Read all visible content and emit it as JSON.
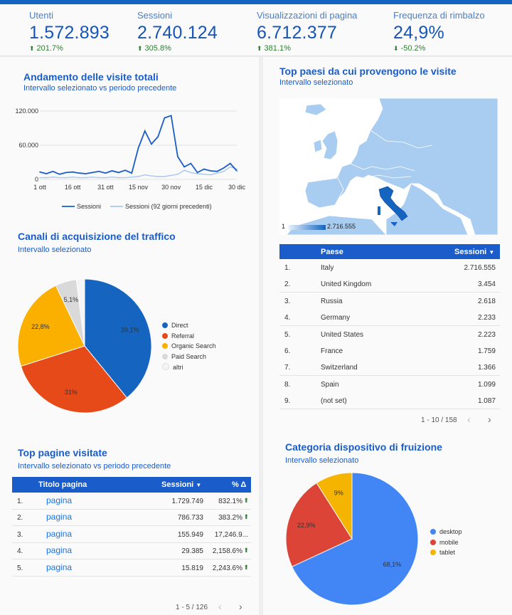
{
  "kpis": [
    {
      "label": "Utenti",
      "value": "1.572.893",
      "change": "201.7%",
      "dir": "up"
    },
    {
      "label": "Sessioni",
      "value": "2.740.124",
      "change": "305.8%",
      "dir": "up"
    },
    {
      "label": "Visualizzazioni di pagina",
      "value": "6.712.377",
      "change": "381.1%",
      "dir": "up"
    },
    {
      "label": "Frequenza di rimbalzo",
      "value": "24,9%",
      "change": "-50.2%",
      "dir": "down"
    }
  ],
  "visits": {
    "title": "Andamento delle visite totali",
    "subtitle": "Intervallo selezionato vs periodo precedente",
    "legend_current": "Sessioni",
    "legend_previous": "Sessioni (92 giorni precedenti)",
    "colors": {
      "current": "#1a5cc9",
      "previous": "#a7c7f2"
    }
  },
  "acq": {
    "title": "Canali di acquisizione del traffico",
    "subtitle": "Intervallo selezionato"
  },
  "countries": {
    "title": "Top paesi da cui provengono le visite",
    "subtitle": "Intervallo selezionato",
    "scale_min": "1",
    "scale_max": "2.716.555",
    "header_country": "Paese",
    "header_sessions": "Sessioni",
    "rows": [
      {
        "n": "1.",
        "name": "Italy",
        "v": "2.716.555"
      },
      {
        "n": "2.",
        "name": "United Kingdom",
        "v": "3.454"
      },
      {
        "n": "3.",
        "name": "Russia",
        "v": "2.618"
      },
      {
        "n": "4.",
        "name": "Germany",
        "v": "2.233"
      },
      {
        "n": "5.",
        "name": "United States",
        "v": "2.223"
      },
      {
        "n": "6.",
        "name": "France",
        "v": "1.759"
      },
      {
        "n": "7.",
        "name": "Switzerland",
        "v": "1.366"
      },
      {
        "n": "8.",
        "name": "Spain",
        "v": "1.099"
      },
      {
        "n": "9.",
        "name": "(not set)",
        "v": "1.087"
      }
    ],
    "pager": "1 - 10 / 158"
  },
  "pages": {
    "title": "Top pagine visitate",
    "subtitle": "Intervallo selezionato vs periodo precedente",
    "header_title": "Titolo pagina",
    "header_sessions": "Sessioni",
    "header_delta": "% Δ",
    "rows": [
      {
        "n": "1.",
        "name": "pagina",
        "v": "1.729.749",
        "d": "832.1%"
      },
      {
        "n": "2.",
        "name": "pagina",
        "v": "786.733",
        "d": "383.2%"
      },
      {
        "n": "3.",
        "name": "pagina",
        "v": "155.949",
        "d": "17,246.9..."
      },
      {
        "n": "4.",
        "name": "pagina",
        "v": "29.385",
        "d": "2,158.6%"
      },
      {
        "n": "5.",
        "name": "pagina",
        "v": "15.819",
        "d": "2,243.6%"
      }
    ],
    "pager": "1 - 5 / 126"
  },
  "device": {
    "title": "Categoria dispositivo di fruizione",
    "subtitle": "Intervallo selezionato"
  },
  "chart_data": [
    {
      "type": "line",
      "x": [
        "1 ott",
        "4 ott",
        "7 ott",
        "10 ott",
        "13 ott",
        "16 ott",
        "19 ott",
        "22 ott",
        "25 ott",
        "28 ott",
        "31 ott",
        "3 nov",
        "6 nov",
        "9 nov",
        "12 nov",
        "15 nov",
        "18 nov",
        "21 nov",
        "24 nov",
        "27 nov",
        "30 nov",
        "3 dic",
        "6 dic",
        "9 dic",
        "12 dic",
        "15 dic",
        "18 dic",
        "21 dic",
        "24 dic",
        "27 dic",
        "30 dic"
      ],
      "x_ticks": [
        "1 ott",
        "16 ott",
        "31 ott",
        "15 nov",
        "30 nov",
        "15 dic",
        "30 dic"
      ],
      "y_ticks": [
        "120.000",
        "60.000",
        "0"
      ],
      "ylim": [
        0,
        120000
      ],
      "series": [
        {
          "name": "Sessioni",
          "values": [
            13000,
            10000,
            14000,
            9000,
            12000,
            13000,
            11000,
            10000,
            12000,
            14000,
            11000,
            15000,
            12000,
            16000,
            11000,
            55000,
            85000,
            62000,
            75000,
            108000,
            112000,
            40000,
            22000,
            28000,
            12000,
            18000,
            15000,
            14000,
            20000,
            28000,
            15000
          ]
        },
        {
          "name": "Sessioni (92 giorni precedenti)",
          "values": [
            3000,
            3000,
            4000,
            3000,
            3000,
            4000,
            3000,
            3000,
            4000,
            3000,
            3000,
            4000,
            3000,
            3000,
            4000,
            5000,
            8000,
            6000,
            5000,
            5000,
            7000,
            9000,
            16000,
            12000,
            10000,
            9000,
            8000,
            11000,
            14000,
            22000,
            18000
          ]
        }
      ]
    },
    {
      "type": "pie",
      "categories": [
        "Direct",
        "Referral",
        "Organic Search",
        "Paid Search",
        "altri"
      ],
      "values": [
        39.1,
        31.0,
        22.8,
        5.1,
        2.0
      ],
      "labels": [
        "39,1%",
        "31%",
        "22,8%",
        "5,1%",
        ""
      ],
      "colors": [
        "#1565c0",
        "#e64a19",
        "#fbb000",
        "#d9d9d9",
        "#f5f5f5"
      ]
    },
    {
      "type": "pie",
      "categories": [
        "desktop",
        "mobile",
        "tablet"
      ],
      "values": [
        68.1,
        22.9,
        9.0
      ],
      "labels": [
        "68,1%",
        "22,9%",
        "9%"
      ],
      "colors": [
        "#4285f4",
        "#db4437",
        "#f4b400"
      ]
    }
  ]
}
